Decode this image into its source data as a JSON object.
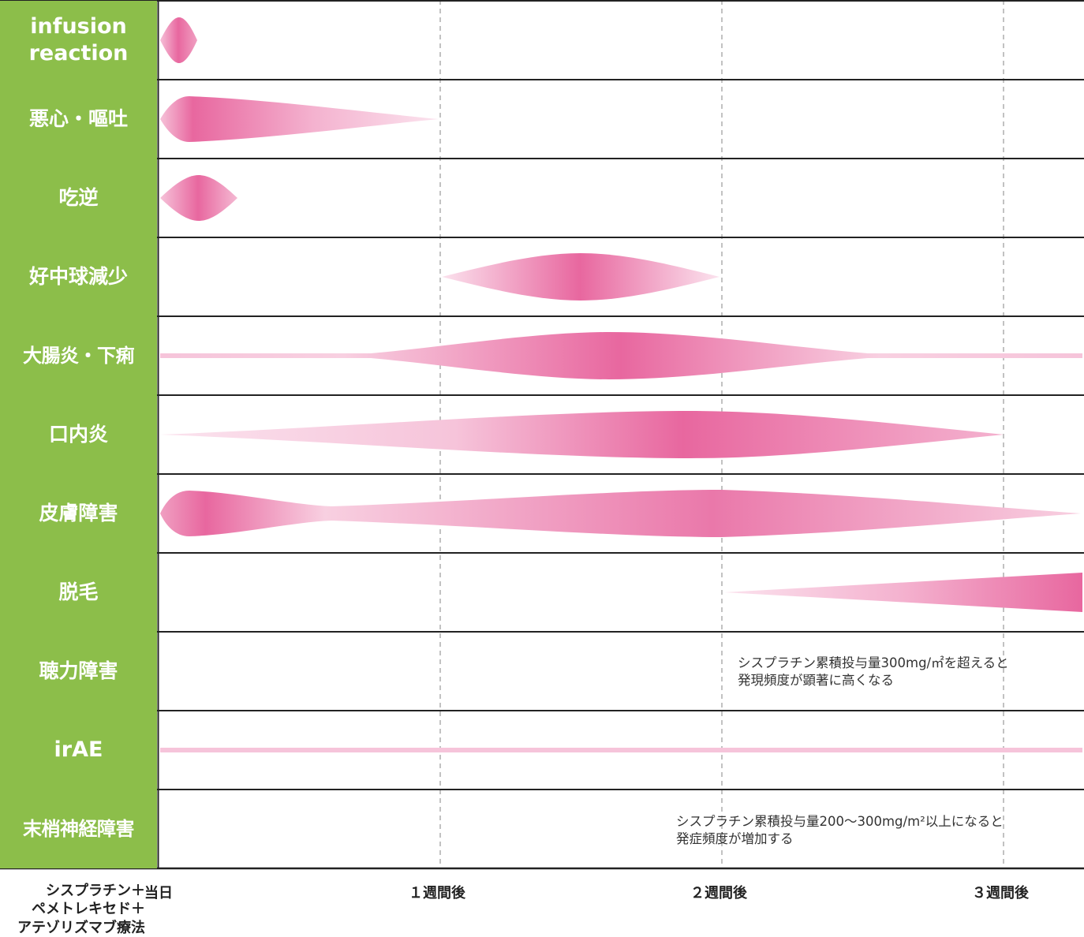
{
  "colors": {
    "label_bg": "#8cbe4a",
    "pink_dark": "#e8679f",
    "pink_light": "#f7cde0",
    "grid": "#222222",
    "dashed": "#999999"
  },
  "axis": {
    "regimen_lines": [
      "シスプラチン＋",
      "ペメトレキセド＋",
      "アテゾリズマブ療法"
    ],
    "ticks": [
      "当日",
      "１週間後",
      "２週間後",
      "３週間後"
    ]
  },
  "rows": [
    {
      "label": "infusion\nreaction"
    },
    {
      "label": "悪心・嘔吐"
    },
    {
      "label": "吃逆"
    },
    {
      "label": "好中球減少"
    },
    {
      "label": "大腸炎・下痢"
    },
    {
      "label": "口内炎"
    },
    {
      "label": "皮膚障害"
    },
    {
      "label": "脱毛"
    },
    {
      "label": "聴力障害",
      "note": [
        "シスプラチン累積投与量300mg/㎡を超えると",
        "発現頻度が顕著に高くなる"
      ]
    },
    {
      "label": "irAE"
    },
    {
      "label": "末梢神経障害",
      "note": [
        "シスプラチン累積投与量200～300mg/m²以上になると",
        "発症頻度が増加する"
      ]
    }
  ]
}
